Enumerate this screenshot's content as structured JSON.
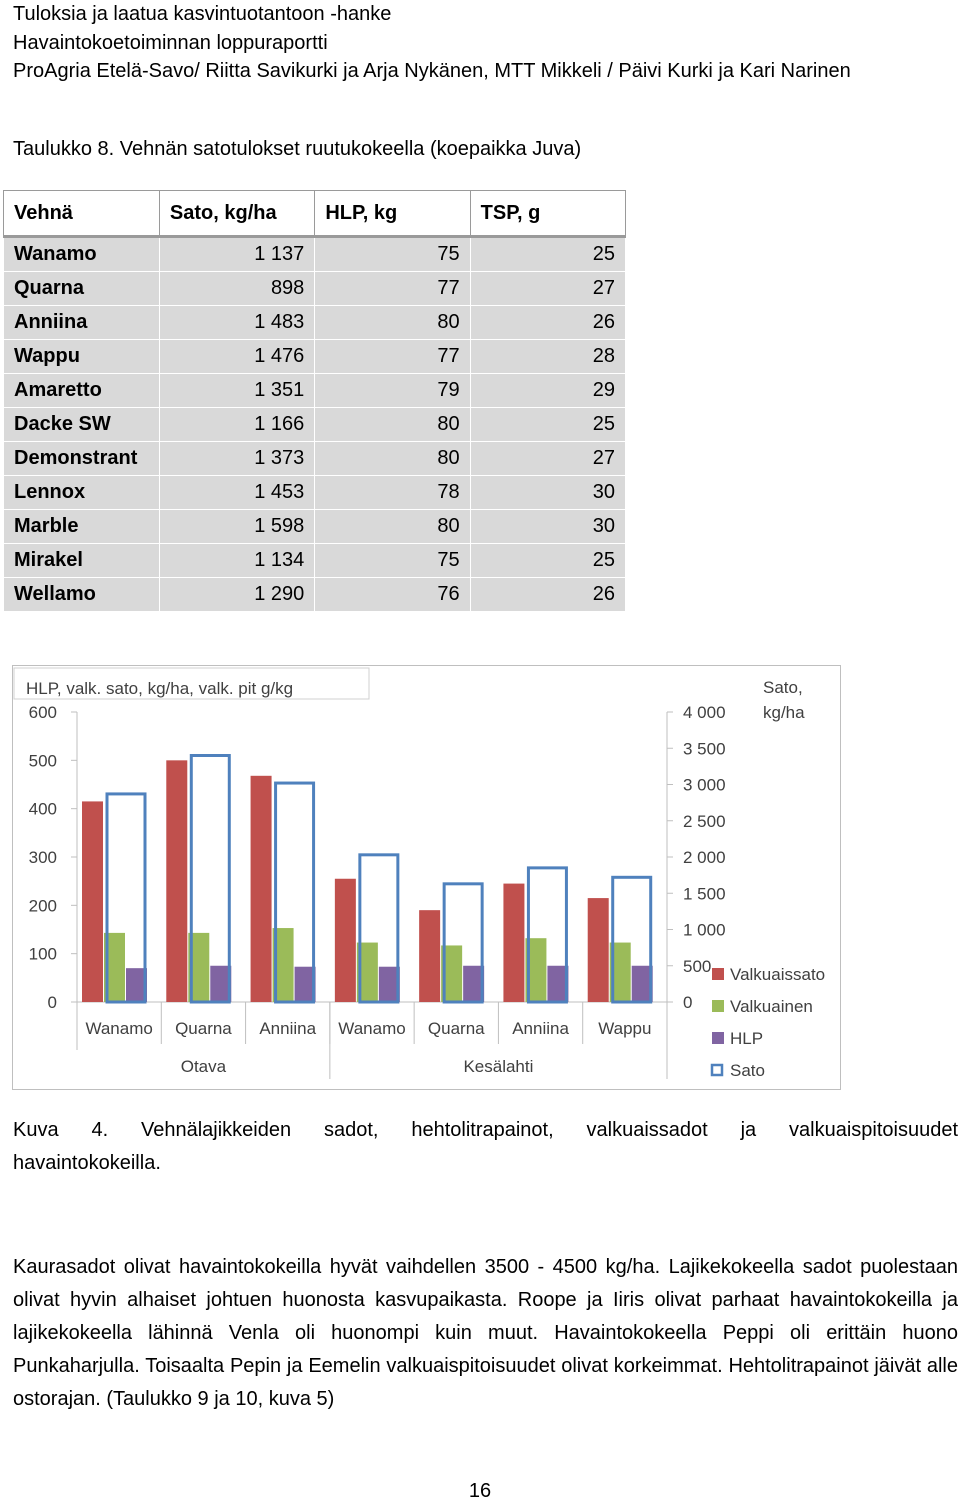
{
  "header": {
    "line1": "Tuloksia ja laatua kasvintuotantoon -hanke",
    "line2": "Havaintokoetoiminnan loppuraportti",
    "line3": "ProAgria Etelä-Savo/ Riitta Savikurki ja Arja Nykänen, MTT Mikkeli / Päivi Kurki ja Kari Narinen"
  },
  "table": {
    "caption": "Taulukko 8. Vehnän satotulokset ruutukokeella (koepaikka Juva)",
    "columns": [
      "Vehnä",
      "Sato, kg/ha",
      "HLP, kg",
      "TSP, g"
    ],
    "rows": [
      [
        "Wanamo",
        "1 137",
        "75",
        "25"
      ],
      [
        "Quarna",
        "898",
        "77",
        "27"
      ],
      [
        "Anniina",
        "1 483",
        "80",
        "26"
      ],
      [
        "Wappu",
        "1 476",
        "77",
        "28"
      ],
      [
        "Amaretto",
        "1 351",
        "79",
        "29"
      ],
      [
        "Dacke SW",
        "1 166",
        "80",
        "25"
      ],
      [
        "Demonstrant",
        "1 373",
        "80",
        "27"
      ],
      [
        "Lennox",
        "1 453",
        "78",
        "30"
      ],
      [
        "Marble",
        "1 598",
        "80",
        "30"
      ],
      [
        "Mirakel",
        "1 134",
        "75",
        "25"
      ],
      [
        "Wellamo",
        "1 290",
        "76",
        "26"
      ]
    ]
  },
  "chart_data": {
    "type": "bar",
    "left_axis_title": "HLP, valk. sato, kg/ha, valk. pit g/kg",
    "right_axis_title_line1": "Sato,",
    "right_axis_title_line2": "kg/ha",
    "left_ylim": [
      0,
      600
    ],
    "right_ylim": [
      0,
      4000
    ],
    "left_ticks": [
      "0",
      "100",
      "200",
      "300",
      "400",
      "500",
      "600"
    ],
    "right_ticks": [
      "0",
      "500",
      "1 000",
      "1 500",
      "2 000",
      "2 500",
      "3 000",
      "3 500",
      "4 000"
    ],
    "categories": [
      "Wanamo",
      "Quarna",
      "Anniina",
      "Wanamo",
      "Quarna",
      "Anniina",
      "Wappu"
    ],
    "groups": [
      {
        "label": "Otava",
        "count": 3
      },
      {
        "label": "Kesälahti",
        "count": 4
      }
    ],
    "series": [
      {
        "name": "Valkuaissato",
        "color": "#c0504d",
        "axis": "left",
        "values": [
          415,
          500,
          468,
          255,
          190,
          245,
          215
        ]
      },
      {
        "name": "Valkuainen",
        "color": "#9bbb59",
        "axis": "left",
        "values": [
          143,
          143,
          153,
          123,
          117,
          132,
          123
        ]
      },
      {
        "name": "HLP",
        "color": "#8064a2",
        "axis": "left",
        "values": [
          70,
          75,
          73,
          73,
          75,
          75,
          75
        ]
      },
      {
        "name": "Sato",
        "color": "#4f81bd",
        "axis": "right",
        "values": [
          2870,
          3400,
          3020,
          2030,
          1630,
          1850,
          1720
        ]
      }
    ],
    "legend_position": "right",
    "grid": false
  },
  "figure_caption": {
    "line1": "Kuva 4. Vehnälajikkeiden sadot, hehtolitrapainot, valkuaissadot ja valkuaispitoisuudet",
    "line2": "havaintokokeilla."
  },
  "paragraph": "Kaurasadot olivat havaintokokeilla hyvät vaihdellen 3500 - 4500 kg/ha. Lajikekokeella sadot puolestaan olivat hyvin alhaiset johtuen huonosta kasvupaikasta. Roope ja Iiris olivat parhaat havaintokokeilla ja lajikekokeella lähinnä Venla oli huonompi kuin muut. Havaintokokeella Peppi oli erittäin huono Punkaharjulla. Toisaalta Pepin ja Eemelin valkuaispitoisuudet olivat korkeimmat. Hehtolitrapainot jäivät alle ostorajan. (Taulukko 9 ja 10, kuva 5)",
  "page_number": "16"
}
